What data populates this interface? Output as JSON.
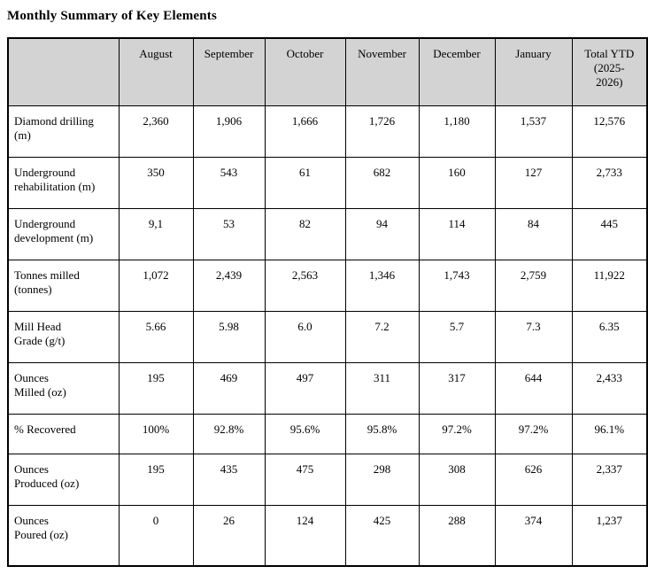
{
  "title": "Monthly Summary of Key Elements",
  "table": {
    "columns": [
      "",
      "August",
      "September",
      "October",
      "November",
      "December",
      "January",
      "Total YTD\n(2025-\n2026)"
    ],
    "rows": [
      {
        "label": "Diamond drilling\n(m)",
        "values": [
          "2,360",
          "1,906",
          "1,666",
          "1,726",
          "1,180",
          "1,537",
          "12,576"
        ]
      },
      {
        "label": "Underground\nrehabilitation (m)",
        "values": [
          "350",
          "543",
          "61",
          "682",
          "160",
          "127",
          "2,733"
        ]
      },
      {
        "label": "Underground\ndevelopment (m)",
        "values": [
          "9,1",
          "53",
          "82",
          "94",
          "114",
          "84",
          "445"
        ]
      },
      {
        "label": "Tonnes milled\n(tonnes)",
        "values": [
          "1,072",
          "2,439",
          "2,563",
          "1,346",
          "1,743",
          "2,759",
          "11,922"
        ]
      },
      {
        "label": "Mill Head\nGrade (g/t)",
        "values": [
          "5.66",
          "5.98",
          "6.0",
          "7.2",
          "5.7",
          "7.3",
          "6.35"
        ]
      },
      {
        "label": "Ounces\nMilled (oz)",
        "values": [
          "195",
          "469",
          "497",
          "311",
          "317",
          "644",
          "2,433"
        ]
      },
      {
        "label": "% Recovered",
        "values": [
          "100%",
          "92.8%",
          "95.6%",
          "95.8%",
          "97.2%",
          "97.2%",
          "96.1%"
        ]
      },
      {
        "label": "Ounces\nProduced (oz)",
        "values": [
          "195",
          "435",
          "475",
          "298",
          "308",
          "626",
          "2,337"
        ]
      },
      {
        "label": "Ounces\nPoured (oz)",
        "values": [
          "0",
          "26",
          "124",
          "425",
          "288",
          "374",
          "1,237"
        ]
      }
    ]
  },
  "colors": {
    "header_background": "#d3d3d3",
    "border": "#000000",
    "text": "#000000"
  }
}
